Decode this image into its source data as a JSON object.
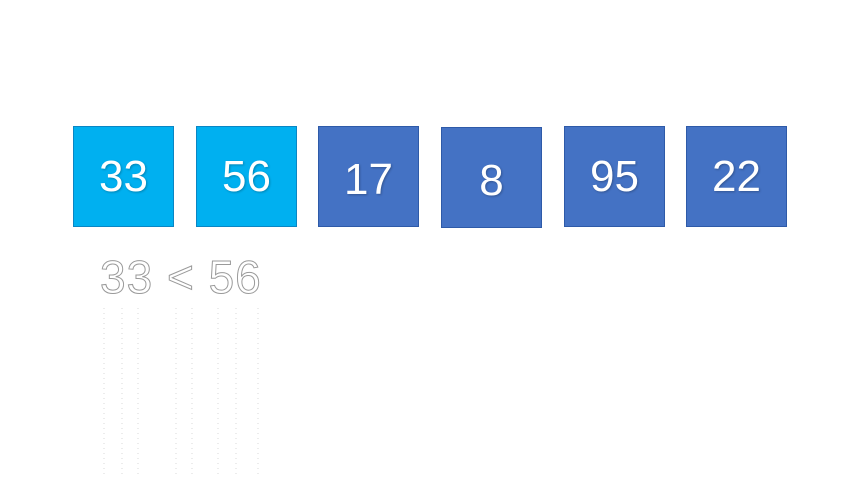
{
  "array": {
    "values": [
      "33",
      "56",
      "17",
      "8",
      "95",
      "22"
    ],
    "active_indices": [
      0,
      1
    ]
  },
  "comparison": {
    "text": "33 < 56"
  },
  "colors": {
    "active": "#00b0f0",
    "inactive": "#4472c4",
    "text": "#ffffff"
  }
}
